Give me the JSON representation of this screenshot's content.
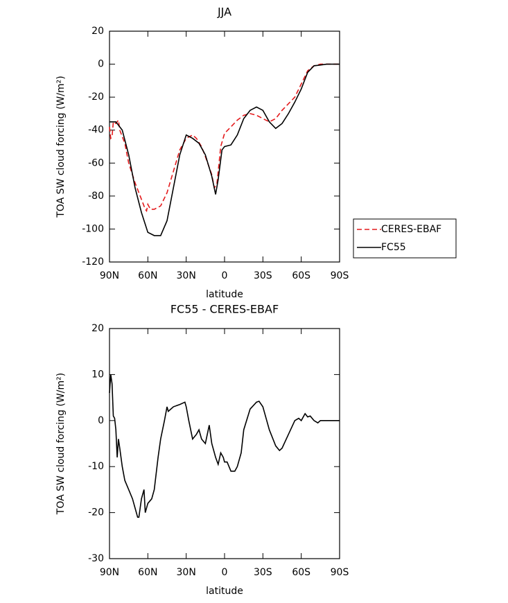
{
  "chart_data": [
    {
      "type": "line",
      "title": "JJA",
      "x_label": "latitude",
      "y_label": "TOA SW cloud forcing (W/m²)",
      "xlim": [
        90,
        -90
      ],
      "xticks": [
        {
          "value": 90,
          "label": "90N"
        },
        {
          "value": 60,
          "label": "60N"
        },
        {
          "value": 30,
          "label": "30N"
        },
        0,
        {
          "value": -30,
          "label": "30S"
        },
        {
          "value": -60,
          "label": "60S"
        },
        {
          "value": -90,
          "label": "90S"
        }
      ],
      "ylim": [
        -120,
        20
      ],
      "yticks": [
        20,
        0,
        -20,
        -40,
        -60,
        -80,
        -100,
        -120
      ],
      "legend": "right",
      "series": [
        {
          "name": "CERES-EBAF",
          "color": "#e41a1c",
          "line_style": "dashed",
          "x": [
            90,
            89,
            88,
            87,
            85,
            83,
            82,
            78,
            75,
            70,
            65,
            62,
            61,
            60,
            58,
            55,
            50,
            45,
            40,
            35,
            30,
            25,
            22,
            18,
            15,
            10,
            8,
            6,
            3,
            0,
            -5,
            -10,
            -15,
            -20,
            -25,
            -30,
            -35,
            -40,
            -45,
            -50,
            -55,
            -60,
            -65,
            -70,
            -75,
            -80,
            -90
          ],
          "values": [
            -38,
            -45,
            -44,
            -35,
            -36,
            -34,
            -40,
            -48,
            -60,
            -72,
            -82,
            -88,
            -89,
            -85,
            -88,
            -88,
            -86,
            -78,
            -65,
            -52,
            -45,
            -43,
            -45,
            -50,
            -56,
            -67,
            -75,
            -73,
            -50,
            -42,
            -38,
            -34,
            -31,
            -30,
            -31,
            -33,
            -35,
            -33,
            -28,
            -24,
            -20,
            -12,
            -4,
            -1,
            0,
            0,
            0
          ]
        },
        {
          "name": "FC55",
          "color": "#000000",
          "line_style": "solid",
          "x": [
            90,
            85,
            80,
            75,
            70,
            65,
            60,
            55,
            50,
            45,
            40,
            35,
            30,
            25,
            20,
            15,
            10,
            7,
            5,
            2,
            0,
            -5,
            -10,
            -15,
            -20,
            -25,
            -30,
            -35,
            -40,
            -45,
            -50,
            -55,
            -60,
            -65,
            -70,
            -75,
            -80,
            -85,
            -90
          ],
          "values": [
            -35,
            -35,
            -40,
            -55,
            -75,
            -90,
            -102,
            -104,
            -104,
            -95,
            -75,
            -55,
            -43,
            -45,
            -48,
            -55,
            -68,
            -79,
            -70,
            -52,
            -50,
            -49,
            -43,
            -33,
            -28,
            -26,
            -28,
            -35,
            -39,
            -36,
            -30,
            -23,
            -15,
            -5,
            -1,
            -0.5,
            0,
            0,
            0
          ]
        }
      ]
    },
    {
      "type": "line",
      "title": "FC55 - CERES-EBAF",
      "x_label": "latitude",
      "y_label": "TOA SW cloud forcing (W/m²)",
      "xlim": [
        90,
        -90
      ],
      "xticks": [
        {
          "value": 90,
          "label": "90N"
        },
        {
          "value": 60,
          "label": "60N"
        },
        {
          "value": 30,
          "label": "30N"
        },
        0,
        {
          "value": -30,
          "label": "30S"
        },
        {
          "value": -60,
          "label": "60S"
        },
        {
          "value": -90,
          "label": "90S"
        }
      ],
      "ylim": [
        -30,
        20
      ],
      "yticks": [
        20,
        10,
        0,
        -10,
        -20,
        -30
      ],
      "color": "#000000",
      "x": [
        90,
        89,
        88,
        87,
        86,
        85,
        84,
        83,
        82,
        80,
        78,
        75,
        72,
        70,
        68,
        67,
        65,
        63,
        62,
        60,
        57,
        55,
        52,
        50,
        47,
        45,
        44,
        40,
        35,
        31,
        30,
        28,
        25,
        22,
        20,
        18,
        15,
        12,
        10,
        7,
        5,
        3,
        1,
        0,
        -2,
        -5,
        -8,
        -10,
        -13,
        -15,
        -20,
        -25,
        -27,
        -30,
        -35,
        -40,
        -43,
        -45,
        -50,
        -55,
        -58,
        -60,
        -63,
        -65,
        -67,
        -70,
        -73,
        -75,
        -78,
        -90
      ],
      "values": [
        6,
        10,
        8,
        1,
        0.5,
        -2,
        -8,
        -4,
        -6,
        -10,
        -13,
        -15,
        -17,
        -19,
        -21,
        -21,
        -17,
        -15,
        -20,
        -18,
        -17,
        -15,
        -8,
        -4,
        0,
        3,
        2,
        3,
        3.5,
        4,
        3,
        0,
        -4,
        -3,
        -2,
        -4,
        -5,
        -1,
        -5,
        -8,
        -9.5,
        -7,
        -8,
        -9,
        -9,
        -11,
        -11,
        -10,
        -7,
        -2,
        2.5,
        4,
        4.2,
        3,
        -2,
        -5.5,
        -6.5,
        -6,
        -3,
        0,
        0.5,
        0,
        1.5,
        0.8,
        1,
        0,
        -0.5,
        0,
        0,
        0
      ]
    }
  ]
}
